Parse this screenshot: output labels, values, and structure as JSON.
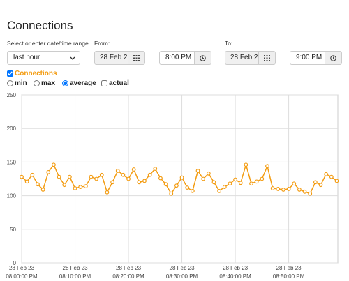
{
  "title": "Connections",
  "range": {
    "label": "Select or enter date/time range",
    "preset": "last hour"
  },
  "from": {
    "label": "From:",
    "date": "28 Feb 2",
    "time": "8:00 PM"
  },
  "to": {
    "label": "To:",
    "date": "28 Feb 2",
    "time": "9:00 PM"
  },
  "series_toggle": {
    "label": "Connections",
    "checked": true
  },
  "aggregation": {
    "options": [
      "min",
      "max",
      "average",
      "actual"
    ],
    "selected": "average"
  },
  "chart_data": {
    "type": "line",
    "x": [
      "2023-02-28T20:00:00",
      "2023-02-28T20:01:00",
      "2023-02-28T20:02:00",
      "2023-02-28T20:03:00",
      "2023-02-28T20:04:00",
      "2023-02-28T20:05:00",
      "2023-02-28T20:06:00",
      "2023-02-28T20:07:00",
      "2023-02-28T20:08:00",
      "2023-02-28T20:09:00",
      "2023-02-28T20:10:00",
      "2023-02-28T20:11:00",
      "2023-02-28T20:12:00",
      "2023-02-28T20:13:00",
      "2023-02-28T20:14:00",
      "2023-02-28T20:15:00",
      "2023-02-28T20:16:00",
      "2023-02-28T20:17:00",
      "2023-02-28T20:18:00",
      "2023-02-28T20:19:00",
      "2023-02-28T20:20:00",
      "2023-02-28T20:21:00",
      "2023-02-28T20:22:00",
      "2023-02-28T20:23:00",
      "2023-02-28T20:24:00",
      "2023-02-28T20:25:00",
      "2023-02-28T20:26:00",
      "2023-02-28T20:27:00",
      "2023-02-28T20:28:00",
      "2023-02-28T20:29:00",
      "2023-02-28T20:30:00",
      "2023-02-28T20:31:00",
      "2023-02-28T20:32:00",
      "2023-02-28T20:33:00",
      "2023-02-28T20:34:00",
      "2023-02-28T20:35:00",
      "2023-02-28T20:36:00",
      "2023-02-28T20:37:00",
      "2023-02-28T20:38:00",
      "2023-02-28T20:39:00",
      "2023-02-28T20:40:00",
      "2023-02-28T20:41:00",
      "2023-02-28T20:42:00",
      "2023-02-28T20:43:00",
      "2023-02-28T20:44:00",
      "2023-02-28T20:45:00",
      "2023-02-28T20:46:00",
      "2023-02-28T20:47:00",
      "2023-02-28T20:48:00",
      "2023-02-28T20:49:00",
      "2023-02-28T20:50:00",
      "2023-02-28T20:51:00",
      "2023-02-28T20:52:00",
      "2023-02-28T20:53:00",
      "2023-02-28T20:54:00",
      "2023-02-28T20:55:00",
      "2023-02-28T20:56:00",
      "2023-02-28T20:57:00",
      "2023-02-28T20:58:00",
      "2023-02-28T20:59:00"
    ],
    "series": [
      {
        "name": "Connections",
        "color": "#f39c12",
        "values": [
          128,
          121,
          131,
          117,
          109,
          135,
          146,
          128,
          116,
          128,
          111,
          113,
          114,
          128,
          125,
          131,
          105,
          120,
          137,
          131,
          125,
          139,
          120,
          122,
          131,
          140,
          126,
          117,
          103,
          115,
          127,
          112,
          107,
          137,
          125,
          133,
          120,
          107,
          113,
          118,
          124,
          119,
          146,
          118,
          121,
          125,
          144,
          111,
          110,
          109,
          110,
          118,
          109,
          106,
          103,
          120,
          116,
          132,
          128,
          122
        ]
      }
    ],
    "xlim": [
      "2023-02-28T20:00:00",
      "2023-02-28T20:59:12"
    ],
    "xticks": [
      {
        "value": "2023-02-28T20:00:00",
        "label": [
          "28 Feb 23",
          "08:00:00 PM"
        ]
      },
      {
        "value": "2023-02-28T20:10:00",
        "label": [
          "28 Feb 23",
          "08:10:00 PM"
        ]
      },
      {
        "value": "2023-02-28T20:20:00",
        "label": [
          "28 Feb 23",
          "08:20:00 PM"
        ]
      },
      {
        "value": "2023-02-28T20:30:00",
        "label": [
          "28 Feb 23",
          "08:30:00 PM"
        ]
      },
      {
        "value": "2023-02-28T20:40:00",
        "label": [
          "28 Feb 23",
          "08:40:00 PM"
        ]
      },
      {
        "value": "2023-02-28T20:50:00",
        "label": [
          "28 Feb 23",
          "08:50:00 PM"
        ]
      }
    ],
    "ylim": [
      0,
      250
    ],
    "yticks": [
      0,
      50,
      100,
      150,
      200,
      250
    ],
    "grid": true
  }
}
